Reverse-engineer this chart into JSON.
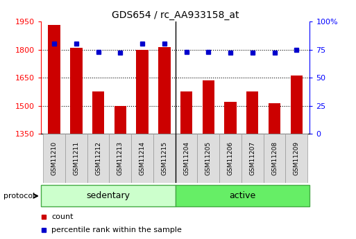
{
  "title": "GDS654 / rc_AA933158_at",
  "samples": [
    "GSM11210",
    "GSM11211",
    "GSM11212",
    "GSM11213",
    "GSM11214",
    "GSM11215",
    "GSM11204",
    "GSM11205",
    "GSM11206",
    "GSM11207",
    "GSM11208",
    "GSM11209"
  ],
  "counts": [
    1930,
    1810,
    1575,
    1500,
    1800,
    1815,
    1575,
    1635,
    1520,
    1575,
    1515,
    1660
  ],
  "percentiles": [
    80,
    80,
    73,
    72,
    80,
    80,
    73,
    73,
    72,
    72,
    72,
    75
  ],
  "groups": [
    "sedentary",
    "sedentary",
    "sedentary",
    "sedentary",
    "sedentary",
    "sedentary",
    "active",
    "active",
    "active",
    "active",
    "active",
    "active"
  ],
  "group_colors": {
    "sedentary": "#ccffcc",
    "active": "#66ee66"
  },
  "bar_color": "#cc0000",
  "dot_color": "#0000cc",
  "ylim_left": [
    1350,
    1950
  ],
  "ylim_right": [
    0,
    100
  ],
  "yticks_left": [
    1350,
    1500,
    1650,
    1800,
    1950
  ],
  "yticks_right": [
    0,
    25,
    50,
    75,
    100
  ],
  "ytick_labels_right": [
    "0",
    "25",
    "50",
    "75",
    "100%"
  ],
  "grid_values": [
    1500,
    1650,
    1800
  ],
  "legend_count_label": "count",
  "legend_pct_label": "percentile rank within the sample",
  "protocol_label": "protocol",
  "cell_color": "#dddddd",
  "cell_edge_color": "#999999"
}
